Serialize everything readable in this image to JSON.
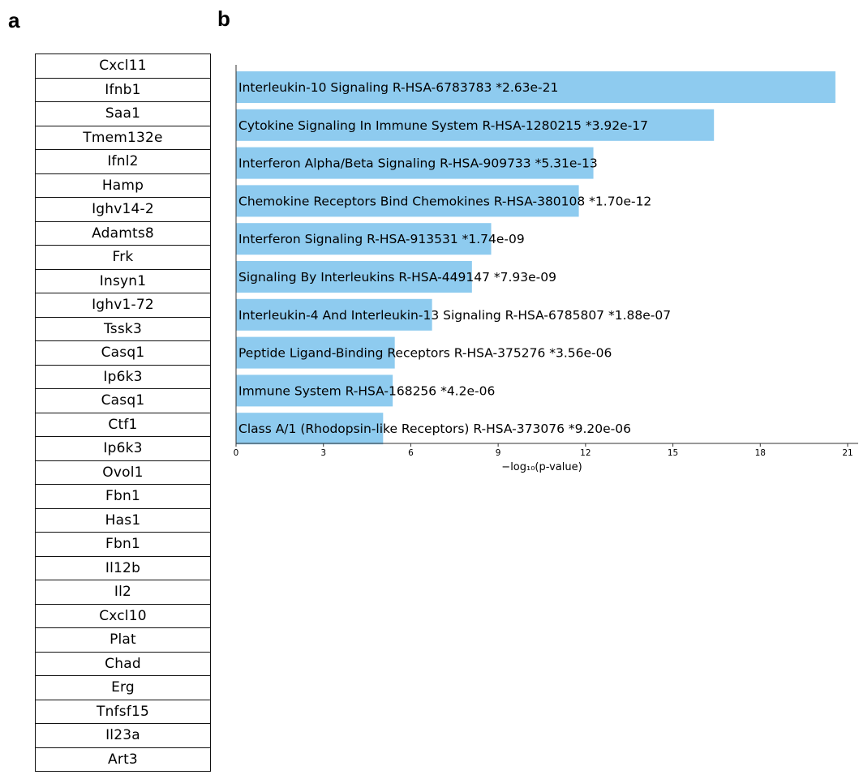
{
  "panels": {
    "a": "a",
    "b": "b"
  },
  "genes": [
    "Cxcl11",
    "Ifnb1",
    "Saa1",
    "Tmem132e",
    "Ifnl2",
    "Hamp",
    "Ighv14-2",
    "Adamts8",
    "Frk",
    "Insyn1",
    "Ighv1-72",
    "Tssk3",
    "Casq1",
    "Ip6k3",
    "Casq1",
    "Ctf1",
    "Ip6k3",
    "Ovol1",
    "Fbn1",
    "Has1",
    "Fbn1",
    "Il12b",
    "Il2",
    "Cxcl10",
    "Plat",
    "Chad",
    "Erg",
    "Tnfsf15",
    "Il23a",
    "Art3"
  ],
  "chart_data": {
    "type": "bar",
    "orientation": "horizontal",
    "title": "",
    "xlabel": "−log₁₀(p-value)",
    "ylabel": "",
    "xlim": [
      0,
      21
    ],
    "xticks": [
      0,
      3,
      6,
      9,
      12,
      15,
      18,
      21
    ],
    "grid": false,
    "bar_color": "#8ecbef",
    "categories": [
      "Interleukin-10 Signaling R-HSA-6783783  *2.63e-21",
      "Cytokine Signaling In Immune System R-HSA-1280215  *3.92e-17",
      "Interferon Alpha/Beta Signaling R-HSA-909733  *5.31e-13",
      "Chemokine Receptors Bind Chemokines R-HSA-380108  *1.70e-12",
      "Interferon Signaling R-HSA-913531  *1.74e-09",
      "Signaling By Interleukins R-HSA-449147  *7.93e-09",
      "Interleukin-4 And Interleukin-13 Signaling R-HSA-6785807  *1.88e-07",
      "Peptide Ligand-Binding Receptors R-HSA-375276  *3.56e-06",
      "Immune System R-HSA-168256  *4.2e-06",
      "Class A/1 (Rhodopsin-like Receptors) R-HSA-373076  *9.20e-06"
    ],
    "values": [
      20.58,
      16.41,
      12.27,
      11.77,
      8.76,
      8.1,
      6.73,
      5.45,
      5.38,
      5.05
    ]
  }
}
